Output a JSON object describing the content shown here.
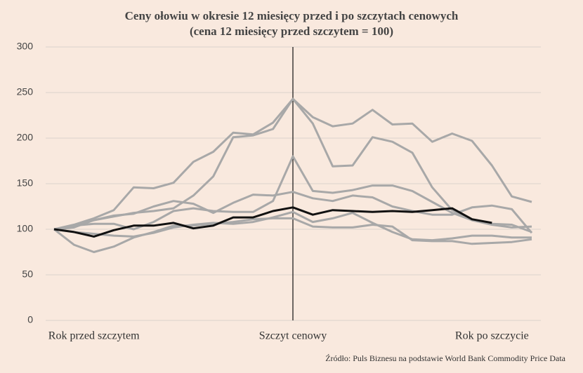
{
  "chart_data": {
    "type": "line",
    "title": "Ceny ołowiu w okresie 12 miesięcy przed i po szczytach cenowych",
    "subtitle": "(cena 12 miesięcy przed szczytem = 100)",
    "source": "Źródło: Puls Biznesu na podstawie World Bank Commodity Price Data",
    "categories": [
      null,
      null,
      "Rok przed szczytem",
      null,
      null,
      null,
      null,
      null,
      null,
      null,
      null,
      null,
      "Szczyt cenowy",
      null,
      null,
      null,
      null,
      null,
      null,
      null,
      null,
      null,
      "Rok po szczycie",
      null,
      null
    ],
    "ylim": [
      0,
      300
    ],
    "yticks": [
      0,
      50,
      100,
      150,
      200,
      250,
      300
    ],
    "grid": true,
    "series": [
      {
        "color": "#a8a8a8",
        "values": [
          100,
          105,
          112,
          121,
          146,
          145,
          151,
          174,
          185,
          206,
          204,
          217,
          243,
          223,
          213,
          216,
          231,
          215,
          216,
          196,
          205,
          197,
          170,
          136,
          130
        ]
      },
      {
        "color": "#a8a8a8",
        "values": [
          100,
          102,
          110,
          114,
          118,
          120,
          123,
          137,
          158,
          201,
          203,
          210,
          243,
          216,
          169,
          170,
          201,
          196,
          184,
          146,
          121,
          110,
          106,
          105,
          97
        ]
      },
      {
        "color": "#a8a8a8",
        "values": [
          100,
          104,
          106,
          106,
          100,
          108,
          120,
          123,
          120,
          119,
          119,
          131,
          180,
          142,
          140,
          143,
          148,
          148,
          142,
          130,
          118,
          110,
          105,
          102,
          103
        ]
      },
      {
        "color": "#a8a8a8",
        "values": [
          100,
          104,
          110,
          115,
          117,
          125,
          131,
          128,
          118,
          129,
          138,
          137,
          141,
          134,
          131,
          137,
          135,
          125,
          120,
          116,
          116,
          124,
          126,
          122,
          96
        ]
      },
      {
        "color": "#a8a8a8",
        "values": [
          100,
          83,
          75,
          81,
          91,
          97,
          104,
          104,
          106,
          108,
          111,
          112,
          112,
          103,
          102,
          102,
          105,
          103,
          88,
          87,
          87,
          84,
          85,
          86,
          89
        ]
      },
      {
        "color": "#a8a8a8",
        "values": [
          100,
          97,
          95,
          93,
          92,
          96,
          102,
          105,
          107,
          106,
          108,
          113,
          119,
          108,
          112,
          118,
          107,
          97,
          89,
          88,
          90,
          93,
          93,
          91,
          91
        ]
      },
      {
        "color": "#111111",
        "values": [
          100,
          97,
          92,
          99,
          104,
          104,
          107,
          101,
          104,
          113,
          113,
          120,
          124,
          116,
          121,
          120,
          119,
          120,
          119,
          121,
          123,
          111,
          107,
          null,
          null
        ]
      }
    ]
  }
}
